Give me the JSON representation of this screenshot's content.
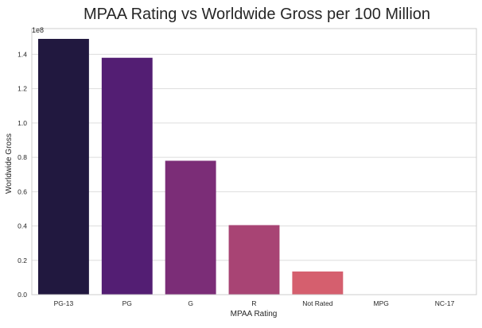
{
  "chart_data": {
    "type": "bar",
    "title": "MPAA Rating vs Worldwide Gross per 100 Million",
    "xlabel": "MPAA Rating",
    "ylabel": "Worldwide Gross",
    "y_offset_label": "1e8",
    "categories": [
      "PG-13",
      "PG",
      "G",
      "R",
      "Not Rated",
      "MPG",
      "NC-17"
    ],
    "values": [
      149000000,
      138000000,
      78000000,
      40500000,
      13500000,
      0,
      0
    ],
    "colors": [
      "#21183f",
      "#531e73",
      "#7b2d77",
      "#a84474",
      "#d55f6e",
      "#f0906b",
      "#f8c28e"
    ],
    "ylim": [
      0,
      155000000
    ],
    "yticks": [
      {
        "value": 0,
        "label": "0.0"
      },
      {
        "value": 20000000,
        "label": "0.2"
      },
      {
        "value": 40000000,
        "label": "0.4"
      },
      {
        "value": 60000000,
        "label": "0.6"
      },
      {
        "value": 80000000,
        "label": "0.8"
      },
      {
        "value": 100000000,
        "label": "1.0"
      },
      {
        "value": 120000000,
        "label": "1.2"
      },
      {
        "value": 140000000,
        "label": "1.4"
      }
    ],
    "grid": "horizontal",
    "legend": "none"
  }
}
